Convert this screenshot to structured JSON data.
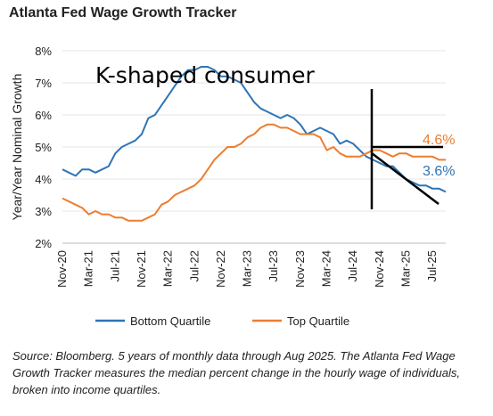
{
  "header": {
    "title": "Atlanta Fed Wage Growth Tracker"
  },
  "footer": {
    "source": "Source: Bloomberg. 5 years of monthly data through Aug 2025. The Atlanta Fed Wage Growth Tracker measures the median percent change in the hourly wage of individuals, broken into income quartiles."
  },
  "annotations": {
    "k_shaped": "K-shaped consumer",
    "top_label": "4.6%",
    "bottom_label": "3.6%"
  },
  "colors": {
    "bottom": "#2e75b6",
    "top": "#ed7d31"
  },
  "chart_data": {
    "type": "line",
    "title": "Atlanta Fed Wage Growth Tracker",
    "xlabel": "",
    "ylabel": "Year/Year Nominal Growth",
    "ylim": [
      2,
      8
    ],
    "yticks": [
      "2%",
      "3%",
      "4%",
      "5%",
      "6%",
      "7%",
      "8%"
    ],
    "xtick_labels": [
      "Nov-20",
      "Mar-21",
      "Jul-21",
      "Nov-21",
      "Mar-22",
      "Jul-22",
      "Nov-22",
      "Mar-23",
      "Jul-23",
      "Nov-23",
      "Mar-24",
      "Jul-24",
      "Nov-24",
      "Mar-25",
      "Jul-25"
    ],
    "x_start": "Nov-20",
    "x_end": "Aug-25",
    "legend_position": "bottom",
    "series": [
      {
        "name": "Bottom Quartile",
        "color": "#2e75b6",
        "values": [
          4.3,
          4.2,
          4.1,
          4.3,
          4.3,
          4.2,
          4.3,
          4.4,
          4.8,
          5.0,
          5.1,
          5.2,
          5.4,
          5.9,
          6.0,
          6.3,
          6.6,
          6.9,
          7.2,
          7.4,
          7.4,
          7.5,
          7.5,
          7.4,
          7.2,
          7.2,
          7.1,
          7.0,
          6.7,
          6.4,
          6.2,
          6.1,
          6.0,
          5.9,
          6.0,
          5.9,
          5.7,
          5.4,
          5.5,
          5.6,
          5.5,
          5.4,
          5.1,
          5.2,
          5.1,
          4.9,
          4.7,
          4.6,
          4.5,
          4.4,
          4.4,
          4.2,
          4.0,
          3.9,
          3.8,
          3.8,
          3.7,
          3.7,
          3.6
        ]
      },
      {
        "name": "Top Quartile",
        "color": "#ed7d31",
        "values": [
          3.4,
          3.3,
          3.2,
          3.1,
          2.9,
          3.0,
          2.9,
          2.9,
          2.8,
          2.8,
          2.7,
          2.7,
          2.7,
          2.8,
          2.9,
          3.2,
          3.3,
          3.5,
          3.6,
          3.7,
          3.8,
          4.0,
          4.3,
          4.6,
          4.8,
          5.0,
          5.0,
          5.1,
          5.3,
          5.4,
          5.6,
          5.7,
          5.7,
          5.6,
          5.6,
          5.5,
          5.4,
          5.4,
          5.4,
          5.3,
          4.9,
          5.0,
          4.8,
          4.7,
          4.7,
          4.7,
          4.8,
          4.9,
          4.9,
          4.8,
          4.7,
          4.8,
          4.8,
          4.7,
          4.7,
          4.7,
          4.7,
          4.6,
          4.6
        ]
      }
    ]
  }
}
